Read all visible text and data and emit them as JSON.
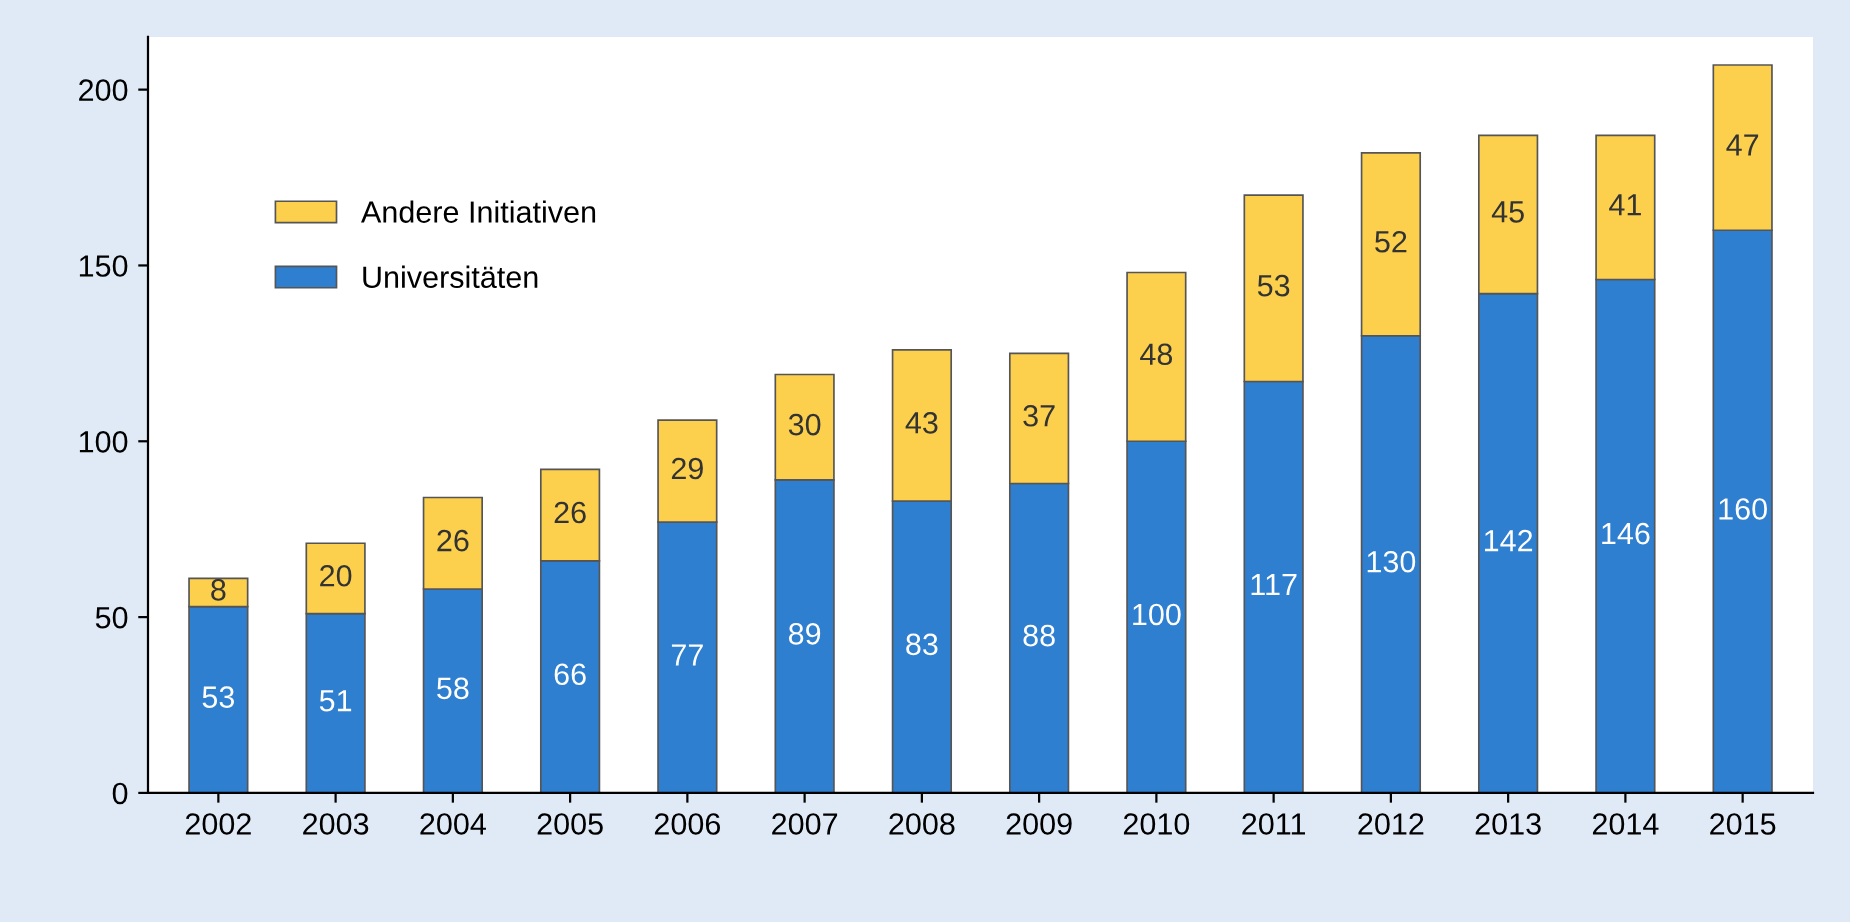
{
  "chart_data": {
    "type": "bar",
    "stacked": true,
    "data_labels": true,
    "legend": "top left",
    "grid": false,
    "categories": [
      "2002",
      "2003",
      "2004",
      "2005",
      "2006",
      "2007",
      "2008",
      "2009",
      "2010",
      "2011",
      "2012",
      "2013",
      "2014",
      "2015"
    ],
    "ylim": [
      0,
      215
    ],
    "yticks": [
      0,
      50,
      100,
      150,
      200
    ],
    "series": [
      {
        "name": "Universitäten",
        "color": "#2f7fd1",
        "values": [
          53,
          51,
          58,
          66,
          77,
          89,
          83,
          88,
          100,
          117,
          130,
          142,
          146,
          160
        ]
      },
      {
        "name": "Andere Initiativen",
        "color": "#fcd04c",
        "values": [
          8,
          20,
          26,
          26,
          29,
          30,
          43,
          37,
          48,
          53,
          52,
          45,
          41,
          47
        ]
      }
    ]
  }
}
